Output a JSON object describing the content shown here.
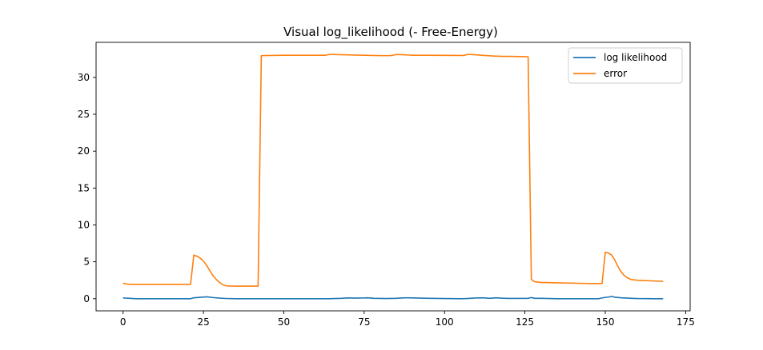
{
  "chart_data": {
    "type": "line",
    "title": "Visual log_likelihood (- Free-Energy)",
    "xlabel": "",
    "ylabel": "",
    "xlim": [
      -8.4,
      176.4
    ],
    "ylim": [
      -1.65,
      34.75
    ],
    "xticks": [
      0,
      25,
      50,
      75,
      100,
      125,
      150,
      175
    ],
    "yticks": [
      0,
      5,
      10,
      15,
      20,
      25,
      30
    ],
    "grid": false,
    "legend_position": "top-right",
    "series": [
      {
        "name": "log likelihood",
        "color": "#1f77b4",
        "x": [
          0,
          2,
          4,
          10,
          21,
          22,
          24,
          26,
          28,
          30,
          32,
          35,
          40,
          43,
          50,
          60,
          64,
          68,
          70,
          72,
          75,
          76,
          78,
          82,
          85,
          87,
          88,
          90,
          95,
          100,
          105,
          107,
          110,
          112,
          114,
          116,
          118,
          120,
          126,
          127,
          128,
          130,
          135,
          140,
          145,
          148,
          149,
          150,
          151,
          152,
          153,
          155,
          158,
          160,
          165,
          168
        ],
        "y": [
          0.1,
          0.05,
          0.0,
          0.0,
          0.0,
          0.12,
          0.18,
          0.25,
          0.15,
          0.08,
          0.03,
          0.0,
          0.0,
          0.0,
          0.0,
          0.0,
          0.0,
          0.05,
          0.1,
          0.08,
          0.1,
          0.12,
          0.05,
          0.02,
          0.05,
          0.1,
          0.12,
          0.1,
          0.05,
          0.02,
          0.0,
          0.02,
          0.1,
          0.12,
          0.05,
          0.12,
          0.06,
          0.04,
          0.05,
          0.15,
          0.05,
          0.05,
          0.0,
          0.0,
          0.0,
          0.0,
          0.1,
          0.18,
          0.22,
          0.3,
          0.2,
          0.12,
          0.05,
          0.02,
          0.0,
          0.0
        ]
      },
      {
        "name": "error",
        "color": "#ff7f0e",
        "x": [
          0,
          1,
          2,
          4,
          10,
          21,
          22,
          23,
          24,
          25,
          26,
          27,
          28,
          29,
          30,
          31,
          32,
          33,
          35,
          40,
          42,
          43,
          50,
          60,
          63,
          64,
          65,
          70,
          75,
          80,
          83,
          84,
          85,
          88,
          90,
          95,
          100,
          106,
          107,
          108,
          110,
          112,
          115,
          118,
          120,
          124,
          126,
          127,
          128,
          130,
          135,
          140,
          145,
          148,
          149,
          150,
          151,
          152,
          153,
          154,
          155,
          156,
          157,
          158,
          160,
          165,
          168
        ],
        "y": [
          2.1,
          2.0,
          1.95,
          1.95,
          1.95,
          1.95,
          5.9,
          5.75,
          5.5,
          5.1,
          4.5,
          3.8,
          3.1,
          2.6,
          2.2,
          1.9,
          1.75,
          1.72,
          1.7,
          1.7,
          1.7,
          32.95,
          33.0,
          33.0,
          33.0,
          33.1,
          33.1,
          33.05,
          33.0,
          32.95,
          32.95,
          33.0,
          33.1,
          33.05,
          33.0,
          33.0,
          32.98,
          32.97,
          33.1,
          33.1,
          33.05,
          32.98,
          32.9,
          32.85,
          32.85,
          32.82,
          32.8,
          2.6,
          2.3,
          2.2,
          2.15,
          2.1,
          2.05,
          2.05,
          2.05,
          6.3,
          6.2,
          5.9,
          5.2,
          4.3,
          3.6,
          3.1,
          2.8,
          2.6,
          2.5,
          2.4,
          2.35
        ]
      }
    ]
  }
}
